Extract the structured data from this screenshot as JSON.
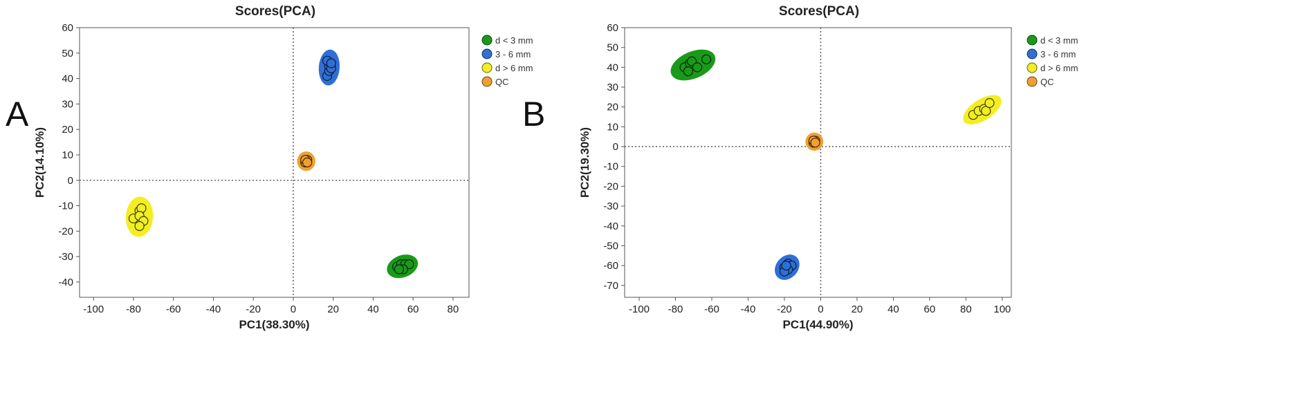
{
  "chart_data": [
    {
      "panel_label": "A",
      "type": "scatter",
      "title": "Scores(PCA)",
      "xlabel": "PC1(38.30%)",
      "ylabel": "PC2(14.10%)",
      "xlim": [
        -107,
        88
      ],
      "ylim": [
        -46,
        60
      ],
      "xticks": [
        -100,
        -80,
        -60,
        -40,
        -20,
        0,
        20,
        40,
        60,
        80
      ],
      "yticks": [
        -40,
        -30,
        -20,
        -10,
        0,
        10,
        20,
        30,
        40,
        50,
        60
      ],
      "zero_lines": true,
      "legend_position": "right",
      "series": [
        {
          "name": "d < 3 mm",
          "color": "#1a9a1a",
          "x": [
            52,
            54,
            56,
            58,
            55,
            53
          ],
          "y": [
            -34,
            -33,
            -33,
            -33,
            -35,
            -35
          ]
        },
        {
          "name": "3 - 6 mm",
          "color": "#2f6fd6",
          "x": [
            17,
            18,
            18,
            19,
            17,
            19
          ],
          "y": [
            41,
            43,
            45,
            44,
            47,
            46
          ]
        },
        {
          "name": "d > 6 mm",
          "color": "#f2ee22",
          "x": [
            -80,
            -77,
            -76,
            -77,
            -75,
            -77
          ],
          "y": [
            -15,
            -12,
            -11,
            -14,
            -16,
            -18
          ]
        },
        {
          "name": "QC",
          "color": "#f0a030",
          "x": [
            6,
            7,
            6,
            7
          ],
          "y": [
            7,
            8,
            8,
            7
          ]
        }
      ]
    },
    {
      "panel_label": "B",
      "type": "scatter",
      "title": "Scores(PCA)",
      "xlabel": "PC1(44.90%)",
      "ylabel": "PC2(19.30%)",
      "xlim": [
        -108,
        105
      ],
      "ylim": [
        -76,
        60
      ],
      "xticks": [
        -100,
        -80,
        -60,
        -40,
        -20,
        0,
        20,
        40,
        60,
        80,
        100
      ],
      "yticks": [
        -70,
        -60,
        -50,
        -40,
        -30,
        -20,
        -10,
        0,
        10,
        20,
        30,
        40,
        50,
        60
      ],
      "zero_lines": true,
      "legend_position": "right",
      "series": [
        {
          "name": "d < 3 mm",
          "color": "#1a9a1a",
          "x": [
            -75,
            -72,
            -71,
            -68,
            -63,
            -73
          ],
          "y": [
            40,
            42,
            43,
            40,
            44,
            38
          ]
        },
        {
          "name": "3 - 6 mm",
          "color": "#2f6fd6",
          "x": [
            -20,
            -18,
            -16,
            -18,
            -20,
            -19
          ],
          "y": [
            -61,
            -59,
            -60,
            -62,
            -63,
            -60
          ]
        },
        {
          "name": "d > 6 mm",
          "color": "#f2ee22",
          "x": [
            84,
            87,
            90,
            91,
            93
          ],
          "y": [
            16,
            18,
            19,
            18,
            22
          ]
        },
        {
          "name": "QC",
          "color": "#f0a030",
          "x": [
            -4,
            -3,
            -4,
            -3
          ],
          "y": [
            2,
            3,
            3,
            2
          ]
        }
      ]
    }
  ]
}
